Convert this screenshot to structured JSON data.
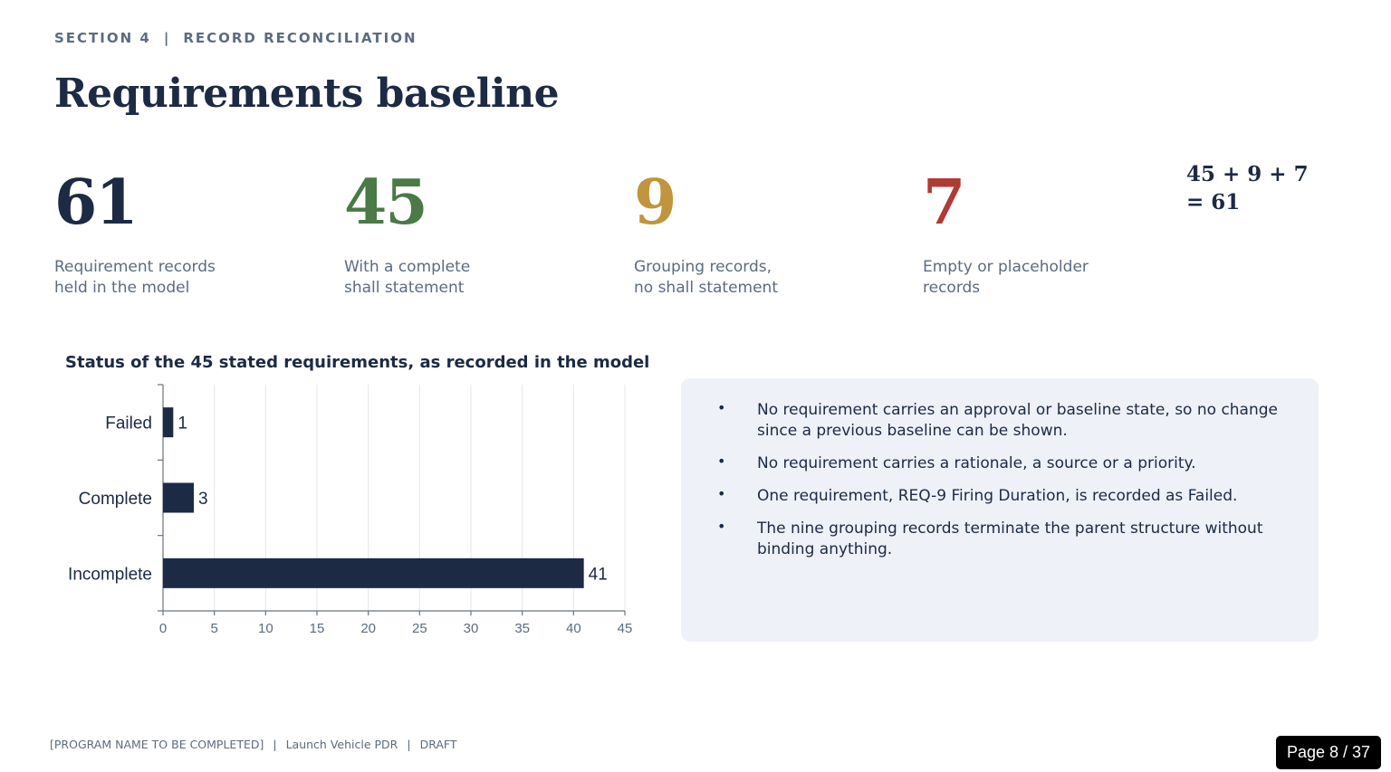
{
  "header": {
    "section": "SECTION 4",
    "divider": "|",
    "topic": "RECORD RECONCILIATION"
  },
  "title": "Requirements baseline",
  "stats": [
    {
      "value": "61",
      "color": "#1c2a44",
      "label_line1": "Requirement records",
      "label_line2": "held in the model"
    },
    {
      "value": "45",
      "color": "#4a7a45",
      "label_line1": "With a complete",
      "label_line2": "shall statement"
    },
    {
      "value": "9",
      "color": "#c0953e",
      "label_line1": "Grouping records,",
      "label_line2": "no shall statement"
    },
    {
      "value": "7",
      "color": "#b03a34",
      "label_line1": "Empty or placeholder",
      "label_line2": "records"
    }
  ],
  "equation": "45 + 9 + 7 = 61",
  "chart_title": "Status of the 45 stated requirements, as recorded in the model",
  "chart_data": {
    "type": "bar",
    "orientation": "horizontal",
    "categories": [
      "Failed",
      "Complete",
      "Incomplete"
    ],
    "values": [
      1,
      3,
      41
    ],
    "data_labels": [
      "1",
      "3",
      "41"
    ],
    "xlim": [
      0,
      45
    ],
    "xticks": [
      0,
      5,
      10,
      15,
      20,
      25,
      30,
      35,
      40,
      45
    ],
    "grid": "vertical",
    "bar_color": "#1c2a44",
    "title": "Status of the 45 stated requirements, as recorded in the model"
  },
  "notes": [
    "No requirement carries an approval or baseline state, so no change since a previous baseline can be shown.",
    "No requirement carries a rationale, a source or a priority.",
    "One requirement, REQ-9 Firing Duration, is recorded as Failed.",
    "The nine grouping records terminate the parent structure without binding anything."
  ],
  "bullet": "•",
  "footer": {
    "program": "[PROGRAM NAME TO BE COMPLETED]",
    "divider": "|",
    "review": "Launch Vehicle PDR",
    "status": "DRAFT"
  },
  "page_label": "Page 8 / 37"
}
